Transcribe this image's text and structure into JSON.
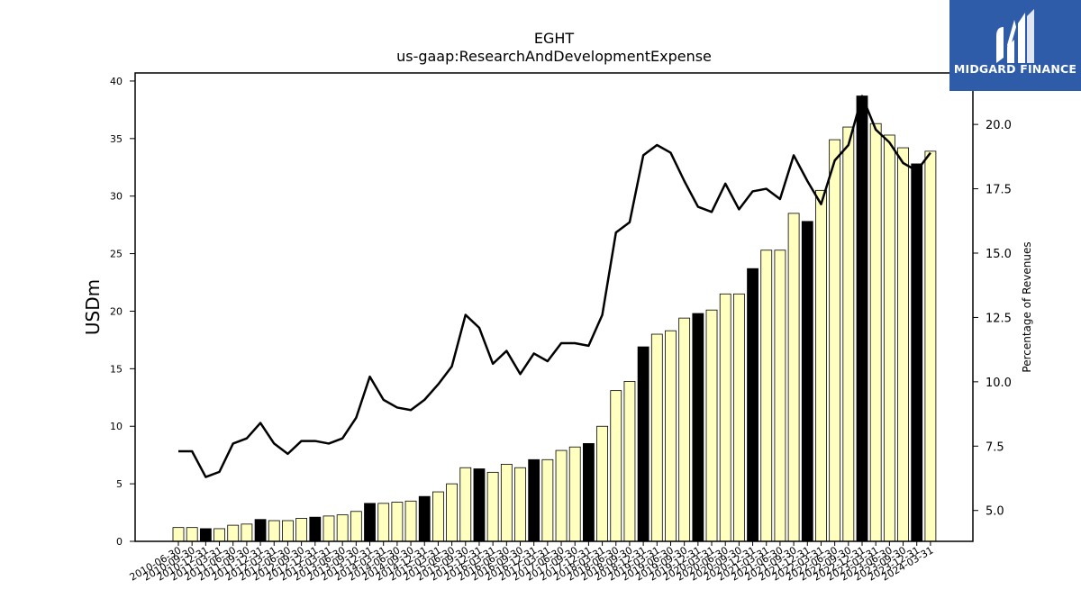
{
  "chart_data": {
    "type": "bar",
    "title": "EGHT",
    "subtitle": "us-gaap:ResearchAndDevelopmentExpense",
    "ylabel": "USDm",
    "ylabel_right": "Percentage of Revenues",
    "ylim": [
      0,
      40.7
    ],
    "ylim_right": [
      3.8,
      22.0
    ],
    "yticks": [
      0,
      5,
      10,
      15,
      20,
      25,
      30,
      35,
      40
    ],
    "yticks_right": [
      "5.0",
      "7.5",
      "10.0",
      "12.5",
      "15.0",
      "17.5",
      "20.0"
    ],
    "grid": false,
    "categories": [
      "2010-06-30",
      "2010-09-30",
      "2010-12-31",
      "2011-03-31",
      "2011-06-30",
      "2011-09-30",
      "2011-12-31",
      "2012-03-31",
      "2012-06-30",
      "2012-09-30",
      "2012-12-31",
      "2013-03-31",
      "2013-06-30",
      "2013-09-30",
      "2013-12-31",
      "2014-03-31",
      "2014-06-30",
      "2014-09-30",
      "2014-12-31",
      "2015-03-31",
      "2015-06-30",
      "2015-09-30",
      "2015-12-31",
      "2016-03-31",
      "2016-06-30",
      "2016-09-30",
      "2016-12-31",
      "2017-03-31",
      "2017-06-30",
      "2017-09-30",
      "2017-12-31",
      "2018-03-31",
      "2018-06-30",
      "2018-09-30",
      "2018-12-31",
      "2019-03-31",
      "2019-06-30",
      "2019-09-30",
      "2019-12-31",
      "2020-03-31",
      "2020-06-30",
      "2020-09-30",
      "2020-12-31",
      "2021-03-31",
      "2021-06-30",
      "2021-09-30",
      "2021-12-31",
      "2022-03-31",
      "2022-06-30",
      "2022-09-30",
      "2022-12-31",
      "2023-03-31",
      "2023-06-30",
      "2023-09-30",
      "2023-12-31",
      "2024-03-31"
    ],
    "series": [
      {
        "values": [
          1.2,
          1.2,
          1.1,
          1.1,
          1.4,
          1.5,
          1.9,
          1.8,
          1.8,
          2.0,
          2.1,
          2.2,
          2.3,
          2.6,
          3.3,
          3.3,
          3.4,
          3.5,
          3.9,
          4.3,
          5.0,
          6.4,
          6.3,
          6.0,
          6.7,
          6.4,
          7.1,
          7.1,
          7.9,
          8.2,
          8.5,
          10.0,
          13.1,
          13.9,
          16.9,
          18.0,
          18.3,
          19.4,
          19.8,
          20.1,
          21.5,
          21.5,
          23.7,
          25.3,
          25.3,
          28.5,
          27.8,
          30.5,
          34.9,
          36.0,
          38.7,
          36.3,
          35.3,
          34.2,
          32.8,
          33.9
        ]
      },
      {
        "values": [
          7.3,
          7.3,
          6.3,
          6.5,
          7.6,
          7.8,
          8.4,
          7.6,
          7.2,
          7.7,
          7.7,
          7.6,
          7.8,
          8.6,
          10.2,
          9.3,
          9.0,
          8.9,
          9.3,
          9.9,
          10.6,
          12.6,
          12.1,
          10.7,
          11.2,
          10.3,
          11.1,
          10.8,
          11.5,
          11.5,
          11.4,
          12.6,
          15.8,
          16.2,
          18.8,
          19.2,
          18.9,
          17.8,
          16.8,
          16.6,
          17.7,
          16.7,
          17.4,
          17.5,
          17.1,
          18.8,
          17.8,
          16.9,
          18.6,
          19.2,
          21.1,
          19.8,
          19.3,
          18.5,
          18.2,
          18.9
        ]
      }
    ],
    "colors": {
      "bar_fill": "#ffffbf",
      "bar_fill_dark": "#000000",
      "bar_stroke": "#000000",
      "line": "#000000",
      "logo_bg": "#2f5ca9"
    }
  },
  "logo": {
    "text": "MIDGARD FINANCE",
    "icon": "midgard-m-logo-icon"
  }
}
